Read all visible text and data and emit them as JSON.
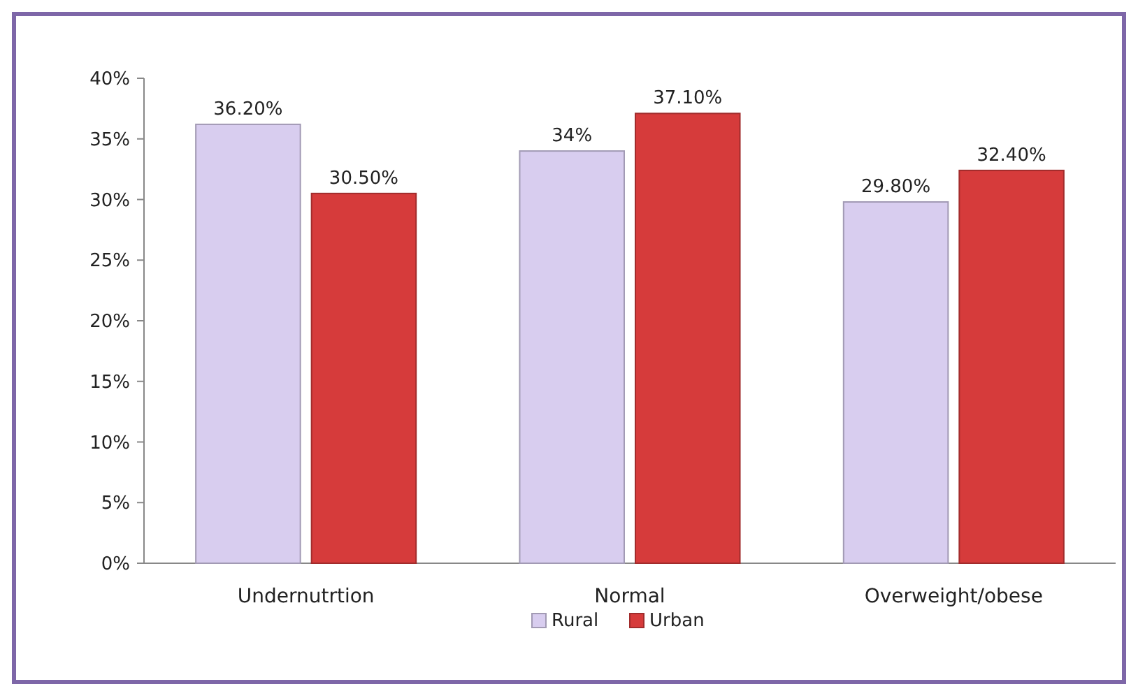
{
  "chart_data": {
    "type": "bar",
    "categories": [
      "Undernutrtion",
      "Normal",
      "Overweight/obese"
    ],
    "series": [
      {
        "name": "Rural",
        "color": "#d8cdef",
        "values": [
          36.2,
          34,
          29.8
        ],
        "value_labels": [
          "36.20%",
          "34%",
          "29.80%"
        ]
      },
      {
        "name": "Urban",
        "color": "#d63b3b",
        "values": [
          30.5,
          37.1,
          32.4
        ],
        "value_labels": [
          "30.50%",
          "37.10%",
          "32.40%"
        ]
      }
    ],
    "ylim": [
      0,
      40
    ],
    "yticks": [
      {
        "value": 0,
        "label": "0%"
      },
      {
        "value": 5,
        "label": "5%"
      },
      {
        "value": 10,
        "label": "10%"
      },
      {
        "value": 15,
        "label": "15%"
      },
      {
        "value": 20,
        "label": "20%"
      },
      {
        "value": 25,
        "label": "25%"
      },
      {
        "value": 30,
        "label": "30%"
      },
      {
        "value": 35,
        "label": "35%"
      },
      {
        "value": 40,
        "label": "40%"
      }
    ],
    "grid": false,
    "legend": "bottom"
  }
}
